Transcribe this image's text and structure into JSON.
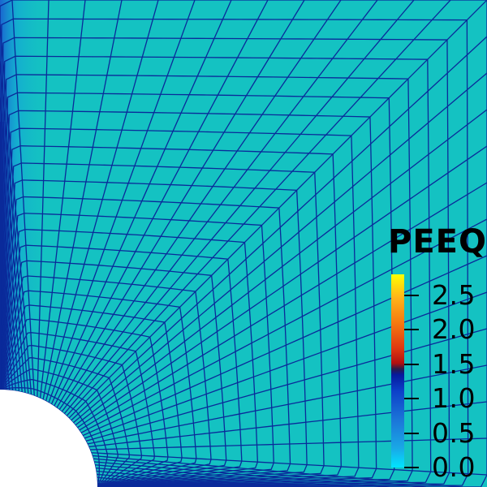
{
  "legend": {
    "title": "PEEQ",
    "ticks": [
      {
        "label": "2.5",
        "value": 2.5
      },
      {
        "label": "2.0",
        "value": 2.0
      },
      {
        "label": "1.5",
        "value": 1.5
      },
      {
        "label": "1.0",
        "value": 1.0
      },
      {
        "label": "0.5",
        "value": 0.5
      },
      {
        "label": "0.0",
        "value": 0.0
      }
    ]
  },
  "colors": {
    "field_base": "#14c2c2",
    "edge_low": "#1a6fd8",
    "edge_peak": "#b01010",
    "mesh_lines": "#0a2a9a",
    "hole": "#ffffff"
  }
}
